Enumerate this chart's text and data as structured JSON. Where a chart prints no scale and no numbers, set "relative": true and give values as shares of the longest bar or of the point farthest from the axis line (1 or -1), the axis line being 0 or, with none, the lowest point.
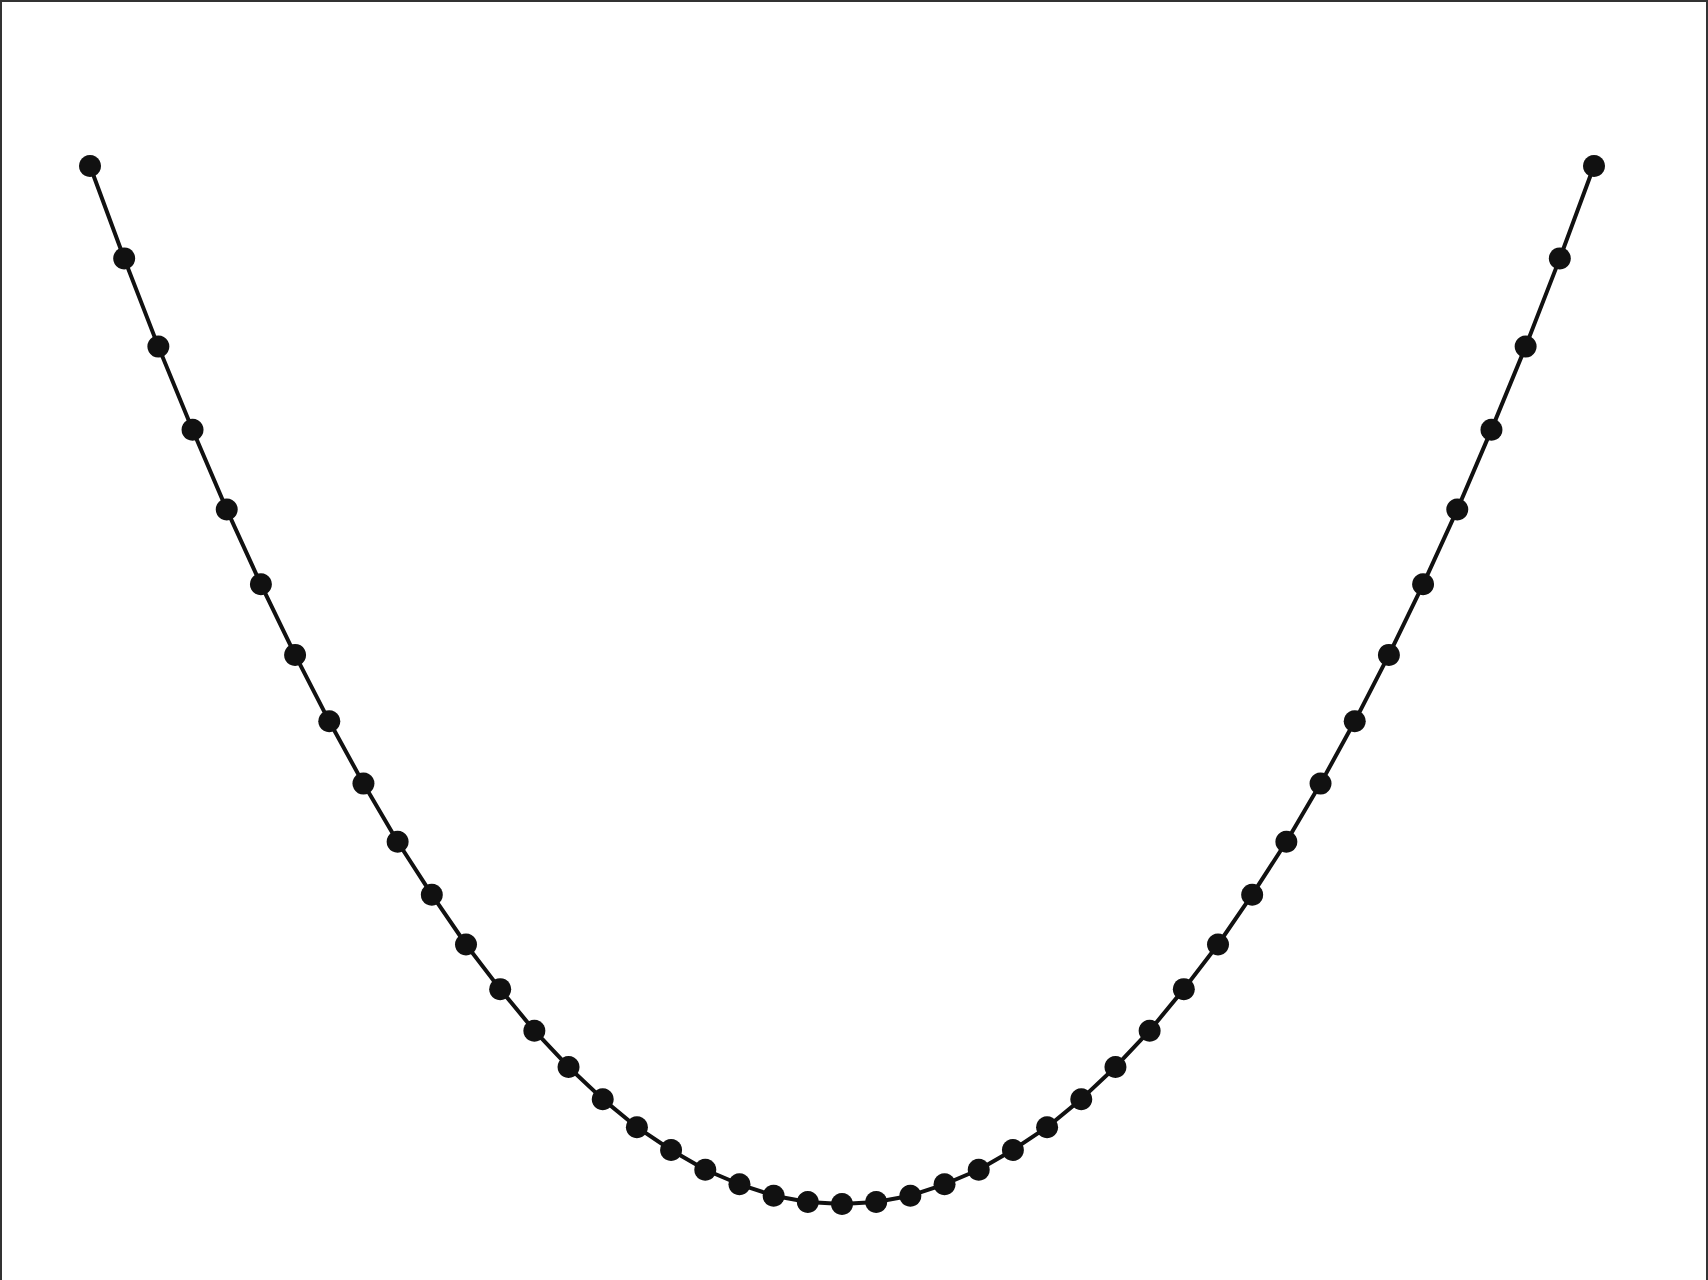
{
  "chart_data": {
    "type": "line",
    "relative": true,
    "categories": [
      null,
      null,
      null,
      null,
      null,
      null,
      null,
      null,
      null,
      null,
      null,
      null,
      null,
      null,
      null,
      null,
      null,
      null,
      null,
      null,
      null,
      null,
      null,
      null,
      null,
      null,
      null,
      null,
      null,
      null,
      null,
      null,
      null,
      null,
      null,
      null,
      null,
      null,
      null,
      null,
      null,
      null,
      null,
      null,
      null
    ],
    "series": [
      {
        "color": "#111111",
        "values": [
          1,
          0.911,
          0.826,
          0.746,
          0.669,
          0.597,
          0.529,
          0.465,
          0.405,
          0.349,
          0.298,
          0.25,
          0.207,
          0.167,
          0.132,
          0.101,
          0.074,
          0.052,
          0.033,
          0.019,
          0.008,
          0.002,
          0,
          0.002,
          0.008,
          0.019,
          0.033,
          0.052,
          0.074,
          0.101,
          0.132,
          0.167,
          0.207,
          0.25,
          0.298,
          0.349,
          0.405,
          0.465,
          0.529,
          0.597,
          0.669,
          0.746,
          0.826,
          0.911,
          1
        ]
      }
    ],
    "marker": "circle",
    "line_style": "solid",
    "grid": false
  }
}
